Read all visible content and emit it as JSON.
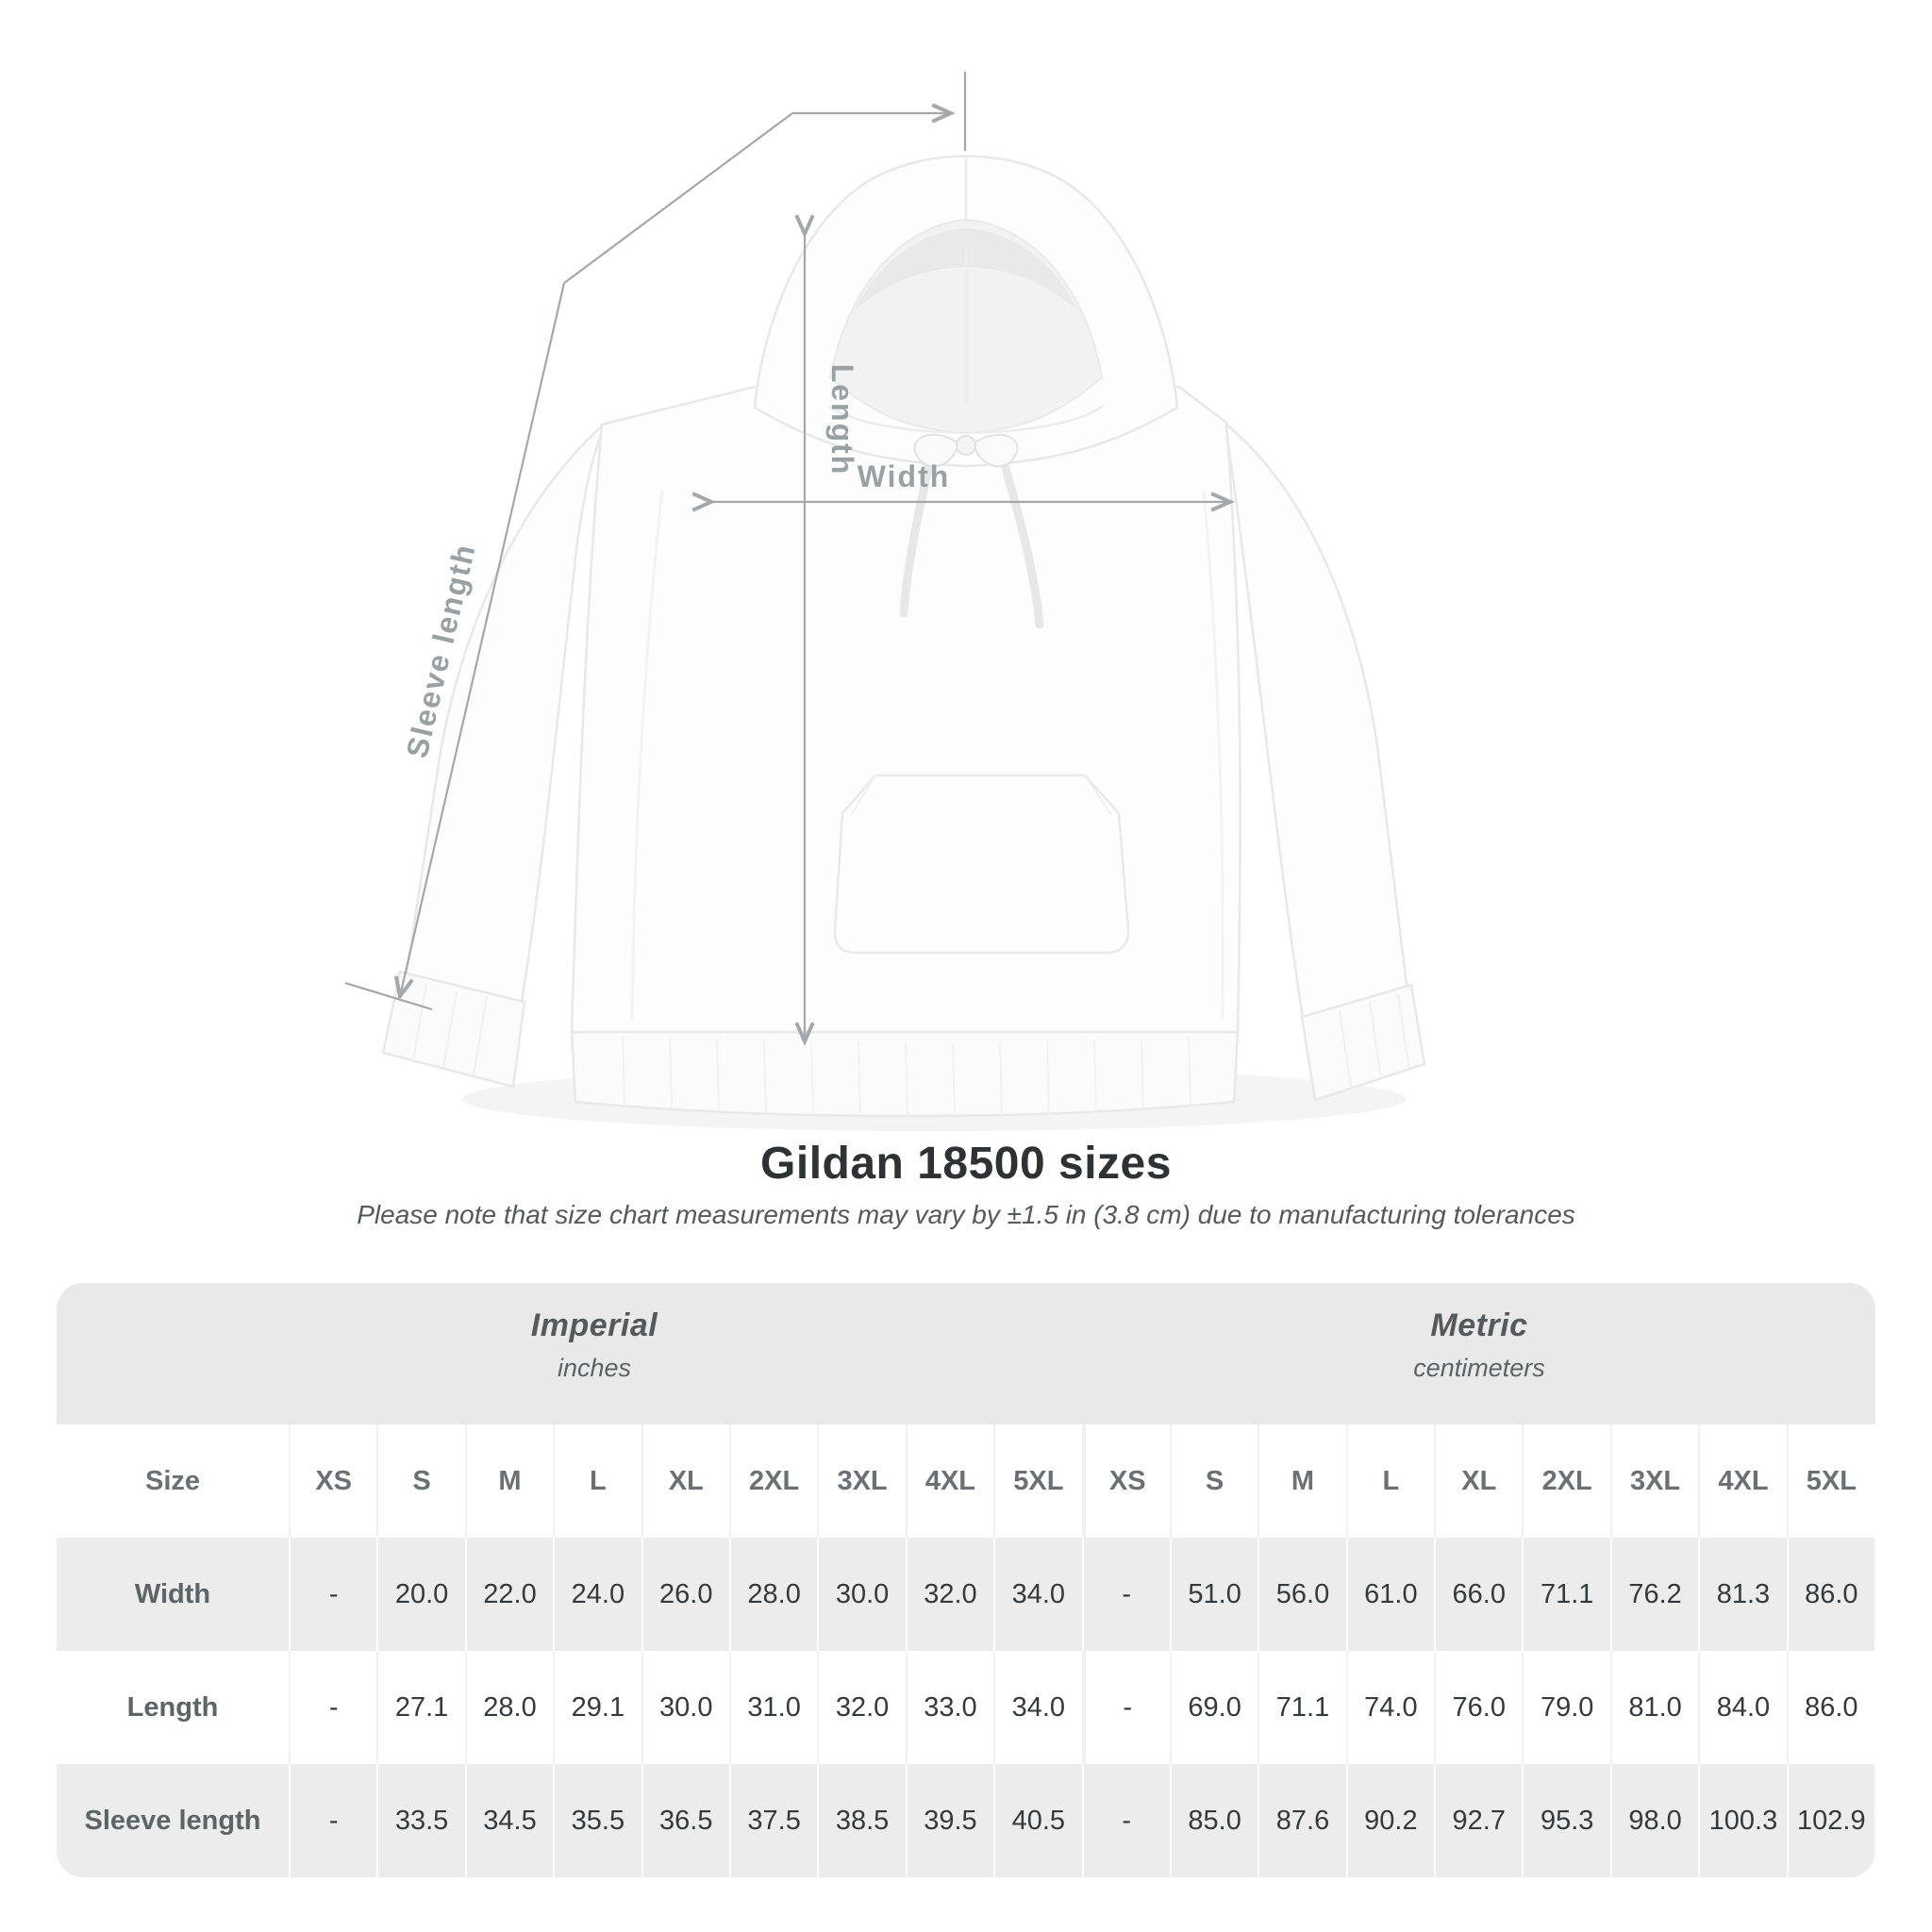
{
  "diagram": {
    "labels": {
      "length": "Length",
      "width": "Width",
      "sleeve": "Sleeve length"
    },
    "arrow_color": "#a4a8ab",
    "label_color": "#9aa1a5",
    "garment": "white pullover hoodie front view"
  },
  "title": "Gildan 18500 sizes",
  "subtitle": "Please note that size chart measurements may vary by ±1.5 in (3.8 cm) due to manufacturing tolerances",
  "table": {
    "size_header_label": "Size",
    "unit_groups": [
      {
        "name": "Imperial",
        "unit": "inches"
      },
      {
        "name": "Metric",
        "unit": "centimeters"
      }
    ],
    "sizes": [
      "XS",
      "S",
      "M",
      "L",
      "XL",
      "2XL",
      "3XL",
      "4XL",
      "5XL"
    ],
    "rows": [
      {
        "label": "Width",
        "imperial": [
          "-",
          "20.0",
          "22.0",
          "24.0",
          "26.0",
          "28.0",
          "30.0",
          "32.0",
          "34.0"
        ],
        "metric": [
          "-",
          "51.0",
          "56.0",
          "61.0",
          "66.0",
          "71.1",
          "76.2",
          "81.3",
          "86.0"
        ]
      },
      {
        "label": "Length",
        "imperial": [
          "-",
          "27.1",
          "28.0",
          "29.1",
          "30.0",
          "31.0",
          "32.0",
          "33.0",
          "34.0"
        ],
        "metric": [
          "-",
          "69.0",
          "71.1",
          "74.0",
          "76.0",
          "79.0",
          "81.0",
          "84.0",
          "86.0"
        ]
      },
      {
        "label": "Sleeve length",
        "imperial": [
          "-",
          "33.5",
          "34.5",
          "35.5",
          "36.5",
          "37.5",
          "38.5",
          "39.5",
          "40.5"
        ],
        "metric": [
          "-",
          "85.0",
          "87.6",
          "90.2",
          "92.7",
          "95.3",
          "98.0",
          "100.3",
          "102.9"
        ]
      }
    ]
  },
  "colors": {
    "table_band": "#e9e9e9",
    "table_stripe": "#ececec",
    "value_text": "#36393b",
    "header_text": "#5d6466",
    "title_text": "#2f3234",
    "subtitle_text": "#55595b"
  }
}
